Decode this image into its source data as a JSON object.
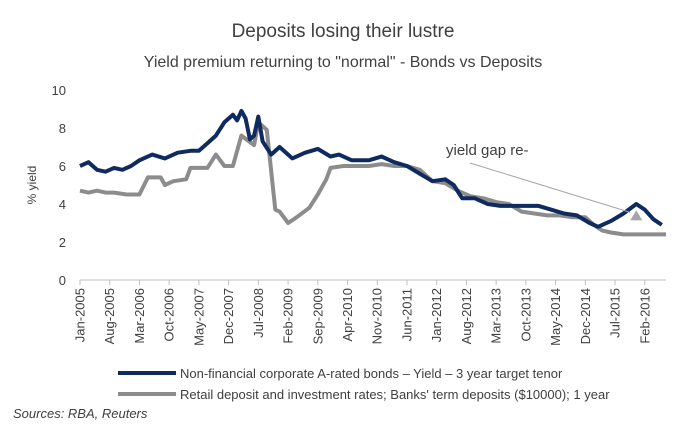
{
  "chart_data": {
    "type": "line",
    "title": "Deposits losing their lustre",
    "subtitle": "Yield premium returning to \"normal\" - Bonds vs Deposits",
    "ylabel": "% yield",
    "ylim": [
      0,
      10
    ],
    "yticks": [
      "0",
      "2",
      "4",
      "6",
      "8",
      "10"
    ],
    "xlim": [
      "2005-01",
      "2016-07"
    ],
    "xtick_labels": [
      "Jan-2005",
      "Aug-2005",
      "Mar-2006",
      "Oct-2006",
      "May-2007",
      "Dec-2007",
      "Jul-2008",
      "Feb-2009",
      "Sep-2009",
      "Apr-2010",
      "Nov-2010",
      "Jun-2011",
      "Jan-2012",
      "Aug-2012",
      "Mar-2013",
      "Oct-2013",
      "May-2014",
      "Dec-2014",
      "Jul-2015",
      "Feb-2016"
    ],
    "grid": false,
    "legend_position": "bottom",
    "annotation": "yield gap re-",
    "source": "Sources: RBA, Reuters",
    "series": [
      {
        "name": "Non-financial corporate A-rated bonds – Yield – 3 year target tenor",
        "color": "#0f2a5e",
        "points": [
          [
            "2005-01",
            6.0
          ],
          [
            "2005-03",
            6.2
          ],
          [
            "2005-05",
            5.8
          ],
          [
            "2005-07",
            5.7
          ],
          [
            "2005-09",
            5.9
          ],
          [
            "2005-11",
            5.8
          ],
          [
            "2006-01",
            6.0
          ],
          [
            "2006-03",
            6.3
          ],
          [
            "2006-06",
            6.6
          ],
          [
            "2006-09",
            6.4
          ],
          [
            "2006-12",
            6.7
          ],
          [
            "2007-03",
            6.8
          ],
          [
            "2007-05",
            6.8
          ],
          [
            "2007-07",
            7.2
          ],
          [
            "2007-09",
            7.6
          ],
          [
            "2007-11",
            8.3
          ],
          [
            "2008-01",
            8.7
          ],
          [
            "2008-02",
            8.4
          ],
          [
            "2008-03",
            8.9
          ],
          [
            "2008-04",
            8.5
          ],
          [
            "2008-05",
            7.4
          ],
          [
            "2008-06",
            7.6
          ],
          [
            "2008-07",
            8.6
          ],
          [
            "2008-08",
            7.3
          ],
          [
            "2008-10",
            6.6
          ],
          [
            "2008-12",
            7.0
          ],
          [
            "2009-03",
            6.4
          ],
          [
            "2009-06",
            6.7
          ],
          [
            "2009-09",
            6.9
          ],
          [
            "2009-12",
            6.5
          ],
          [
            "2010-02",
            6.6
          ],
          [
            "2010-05",
            6.3
          ],
          [
            "2010-09",
            6.3
          ],
          [
            "2010-12",
            6.5
          ],
          [
            "2011-03",
            6.2
          ],
          [
            "2011-06",
            6.0
          ],
          [
            "2011-09",
            5.6
          ],
          [
            "2011-12",
            5.2
          ],
          [
            "2012-03",
            5.3
          ],
          [
            "2012-05",
            5.0
          ],
          [
            "2012-07",
            4.3
          ],
          [
            "2012-10",
            4.3
          ],
          [
            "2013-01",
            4.0
          ],
          [
            "2013-04",
            3.9
          ],
          [
            "2013-07",
            3.9
          ],
          [
            "2013-10",
            3.9
          ],
          [
            "2014-01",
            3.9
          ],
          [
            "2014-04",
            3.7
          ],
          [
            "2014-07",
            3.5
          ],
          [
            "2014-10",
            3.4
          ],
          [
            "2015-01",
            3.0
          ],
          [
            "2015-03",
            2.8
          ],
          [
            "2015-06",
            3.1
          ],
          [
            "2015-09",
            3.5
          ],
          [
            "2015-12",
            4.0
          ],
          [
            "2016-02",
            3.7
          ],
          [
            "2016-04",
            3.2
          ],
          [
            "2016-06",
            2.9
          ]
        ]
      },
      {
        "name": "Retail deposit and investment rates; Banks' term deposits ($10000); 1 year",
        "color": "#8c8c8c",
        "points": [
          [
            "2005-01",
            4.7
          ],
          [
            "2005-03",
            4.6
          ],
          [
            "2005-05",
            4.7
          ],
          [
            "2005-07",
            4.6
          ],
          [
            "2005-09",
            4.6
          ],
          [
            "2005-12",
            4.5
          ],
          [
            "2006-03",
            4.5
          ],
          [
            "2006-05",
            5.4
          ],
          [
            "2006-08",
            5.4
          ],
          [
            "2006-09",
            5.0
          ],
          [
            "2006-11",
            5.2
          ],
          [
            "2007-02",
            5.3
          ],
          [
            "2007-03",
            5.9
          ],
          [
            "2007-07",
            5.9
          ],
          [
            "2007-09",
            6.6
          ],
          [
            "2007-11",
            6.0
          ],
          [
            "2008-01",
            6.0
          ],
          [
            "2008-03",
            7.6
          ],
          [
            "2008-06",
            7.1
          ],
          [
            "2008-07",
            8.3
          ],
          [
            "2008-09",
            7.9
          ],
          [
            "2008-11",
            3.7
          ],
          [
            "2008-12",
            3.6
          ],
          [
            "2009-02",
            3.0
          ],
          [
            "2009-04",
            3.3
          ],
          [
            "2009-07",
            3.8
          ],
          [
            "2009-09",
            4.5
          ],
          [
            "2009-11",
            5.3
          ],
          [
            "2009-12",
            5.9
          ],
          [
            "2010-03",
            6.0
          ],
          [
            "2010-06",
            6.0
          ],
          [
            "2010-09",
            6.0
          ],
          [
            "2010-12",
            6.1
          ],
          [
            "2011-03",
            6.0
          ],
          [
            "2011-06",
            6.0
          ],
          [
            "2011-09",
            5.8
          ],
          [
            "2011-12",
            5.2
          ],
          [
            "2012-03",
            5.1
          ],
          [
            "2012-06",
            4.7
          ],
          [
            "2012-09",
            4.4
          ],
          [
            "2012-12",
            4.3
          ],
          [
            "2013-03",
            4.1
          ],
          [
            "2013-06",
            4.0
          ],
          [
            "2013-09",
            3.6
          ],
          [
            "2013-12",
            3.5
          ],
          [
            "2014-03",
            3.4
          ],
          [
            "2014-06",
            3.4
          ],
          [
            "2014-09",
            3.3
          ],
          [
            "2014-12",
            3.3
          ],
          [
            "2015-02",
            2.9
          ],
          [
            "2015-04",
            2.6
          ],
          [
            "2015-06",
            2.5
          ],
          [
            "2015-09",
            2.4
          ],
          [
            "2016-01",
            2.4
          ],
          [
            "2016-04",
            2.4
          ],
          [
            "2016-07",
            2.4
          ]
        ]
      }
    ]
  }
}
